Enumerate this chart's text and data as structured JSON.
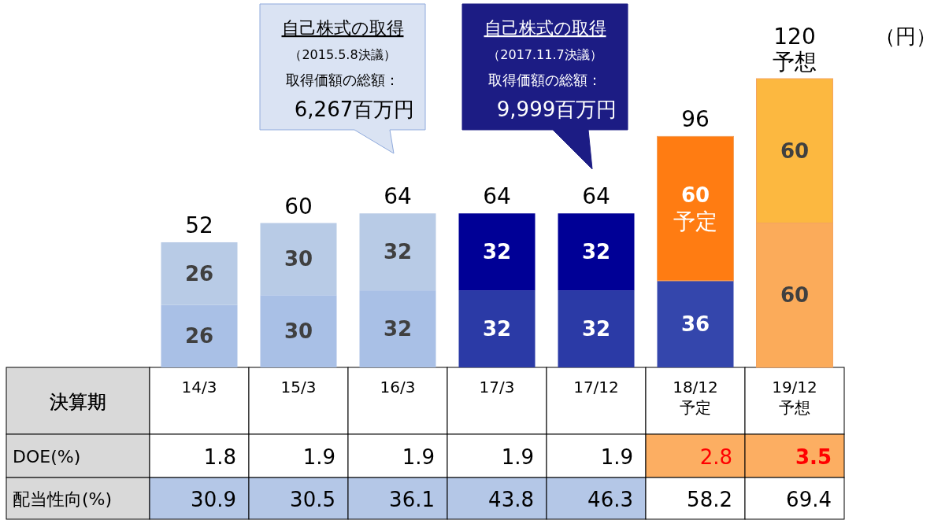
{
  "chart_data": [
    {
      "type": "bar",
      "stacked": true,
      "ylabel": "（円）",
      "xlabel": "決算期",
      "categories": [
        "14/3",
        "15/3",
        "16/3",
        "17/3",
        "17/12",
        "18/12\n予定",
        "19/12\n予想"
      ],
      "series": [
        {
          "colors": [
            "#a9c0e6",
            "#a9c0e6",
            "#a9c0e6",
            "#2b3aa6",
            "#2b3aa6",
            "#3446ac",
            "#fbab5a"
          ],
          "values": [
            26,
            30,
            32,
            32,
            32,
            36,
            60
          ],
          "value_labels": [
            "26",
            "30",
            "32",
            "32",
            "32",
            "36",
            "60"
          ]
        },
        {
          "colors": [
            "#b8cbe6",
            "#b8cbe6",
            "#b8cbe6",
            "#000096",
            "#000096",
            "#ff7c12",
            "#fcb840"
          ],
          "values": [
            26,
            30,
            32,
            32,
            32,
            60,
            60
          ],
          "value_labels": [
            "26",
            "30",
            "32",
            "32",
            "32",
            "60\n予定",
            "60"
          ]
        }
      ],
      "totals": [
        "52",
        "60",
        "64",
        "64",
        "64",
        "96",
        "120\n予想"
      ],
      "annotations": [
        "自己株式の取得",
        "（2015.5.8決議）",
        "取得価額の総額：",
        "6,267百万円",
        "自己株式の取得",
        "（2017.11.7決議）",
        "取得価額の総額：",
        "9,999百万円"
      ]
    },
    {
      "type": "other",
      "annotations": [
        "DOE(%)",
        "1.8",
        "1.9",
        "1.9",
        "1.9",
        "1.9",
        "2.8",
        "3.5",
        "配当性向(%)",
        "30.9",
        "30.5",
        "36.1",
        "43.8",
        "46.3",
        "58.2",
        "69.4"
      ]
    }
  ]
}
